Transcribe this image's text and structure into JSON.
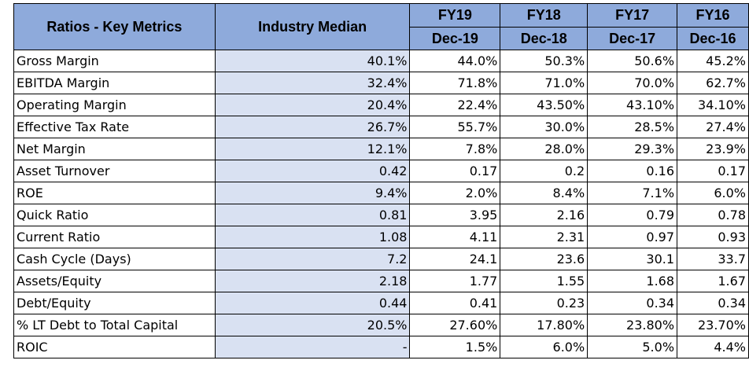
{
  "header": {
    "metric_col": "Ratios - Key Metrics",
    "median_col": "Industry Median",
    "years": [
      {
        "fy": "FY19",
        "period": "Dec-19"
      },
      {
        "fy": "FY18",
        "period": "Dec-18"
      },
      {
        "fy": "FY17",
        "period": "Dec-17"
      },
      {
        "fy": "FY16",
        "period": "Dec-16"
      }
    ]
  },
  "rows": [
    {
      "label": "Gross Margin",
      "values": [
        "40.1%",
        "44.0%",
        "50.3%",
        "50.6%",
        "45.2%"
      ]
    },
    {
      "label": "EBITDA Margin",
      "values": [
        "32.4%",
        "71.8%",
        "71.0%",
        "70.0%",
        "62.7%"
      ]
    },
    {
      "label": "Operating Margin",
      "values": [
        "20.4%",
        "22.4%",
        "43.50%",
        "43.10%",
        "34.10%"
      ]
    },
    {
      "label": "Effective Tax Rate",
      "values": [
        "26.7%",
        "55.7%",
        "30.0%",
        "28.5%",
        "27.4%"
      ]
    },
    {
      "label": "Net Margin",
      "values": [
        "12.1%",
        "7.8%",
        "28.0%",
        "29.3%",
        "23.9%"
      ]
    },
    {
      "label": "Asset Turnover",
      "values": [
        "0.42",
        "0.17",
        "0.2",
        "0.16",
        "0.17"
      ]
    },
    {
      "label": "ROE",
      "values": [
        "9.4%",
        "2.0%",
        "8.4%",
        "7.1%",
        "6.0%"
      ]
    },
    {
      "label": "Quick Ratio",
      "values": [
        "0.81",
        "3.95",
        "2.16",
        "0.79",
        "0.78"
      ]
    },
    {
      "label": "Current Ratio",
      "values": [
        "1.08",
        "4.11",
        "2.31",
        "0.97",
        "0.93"
      ]
    },
    {
      "label": "Cash Cycle (Days)",
      "values": [
        "7.2",
        "24.1",
        "23.6",
        "30.1",
        "33.7"
      ]
    },
    {
      "label": "Assets/Equity",
      "values": [
        "2.18",
        "1.77",
        "1.55",
        "1.68",
        "1.67"
      ]
    },
    {
      "label": "Debt/Equity",
      "values": [
        "0.44",
        "0.41",
        "0.23",
        "0.34",
        "0.34"
      ]
    },
    {
      "label": "% LT Debt to Total Capital",
      "values": [
        "20.5%",
        "27.60%",
        "17.80%",
        "23.80%",
        "23.70%"
      ]
    },
    {
      "label": "ROIC",
      "values": [
        "-",
        "1.5%",
        "6.0%",
        "5.0%",
        "4.4%"
      ]
    }
  ],
  "colors": {
    "header_fill": "#8eaadb",
    "median_fill": "#d9e1f2",
    "border": "#000000"
  }
}
